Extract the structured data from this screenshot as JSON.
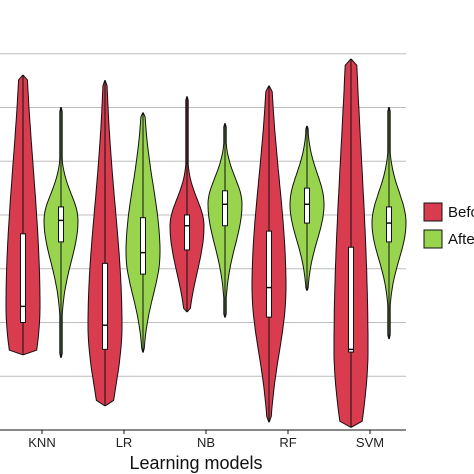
{
  "chart_data": {
    "type": "violin",
    "xlabel": "Learning models",
    "ylabel": "",
    "categories": [
      "KNN",
      "LR",
      "NB",
      "RF",
      "SVM"
    ],
    "ylim": [
      0,
      8
    ],
    "grid": "horizontal",
    "legend_position": "right",
    "series": [
      {
        "name": "Before",
        "color": "#d93b4f",
        "stats": [
          {
            "min": 1.4,
            "q1": 2.0,
            "median": 2.3,
            "q3": 3.65,
            "max": 6.6
          },
          {
            "min": 0.45,
            "q1": 1.5,
            "median": 1.95,
            "q3": 3.1,
            "max": 6.5
          },
          {
            "min": 2.2,
            "q1": 3.35,
            "median": 3.8,
            "q3": 4.0,
            "max": 6.2
          },
          {
            "min": 0.15,
            "q1": 2.1,
            "median": 2.65,
            "q3": 3.7,
            "max": 6.4
          },
          {
            "min": 0.05,
            "q1": 1.45,
            "median": 1.5,
            "q3": 3.4,
            "max": 6.9
          }
        ]
      },
      {
        "name": "After",
        "color": "#98d44e",
        "stats": [
          {
            "min": 1.35,
            "q1": 3.5,
            "median": 3.9,
            "q3": 4.15,
            "max": 6.0
          },
          {
            "min": 1.45,
            "q1": 2.9,
            "median": 3.3,
            "q3": 3.95,
            "max": 5.9
          },
          {
            "min": 2.1,
            "q1": 3.8,
            "median": 4.2,
            "q3": 4.45,
            "max": 5.7
          },
          {
            "min": 2.6,
            "q1": 3.85,
            "median": 4.2,
            "q3": 4.5,
            "max": 5.65
          },
          {
            "min": 1.7,
            "q1": 3.5,
            "median": 3.85,
            "q3": 4.15,
            "max": 6.0
          }
        ]
      }
    ],
    "legend": [
      "Befo",
      "Afte"
    ]
  }
}
